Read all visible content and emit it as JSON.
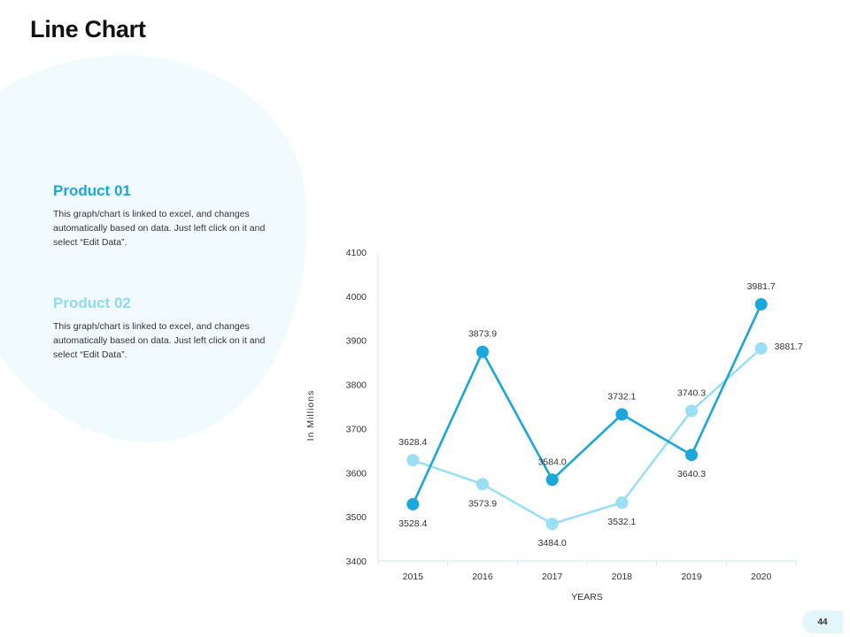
{
  "page_title": "Line Chart",
  "page_number": "44",
  "products": [
    {
      "name": "Product  01",
      "description": "This graph/chart is linked to excel, and changes automatically based on data. Just left click on it and select “Edit Data”."
    },
    {
      "name": "Product  02",
      "description": "This graph/chart is linked to excel, and changes automatically based on data. Just left click on it and select “Edit Data”."
    }
  ],
  "colors": {
    "product_01": "#1aa7dc",
    "product_02": "#9adff5",
    "axis": "#cfeaf4"
  },
  "chart_data": {
    "type": "line",
    "title": "",
    "xlabel": "YEARS",
    "ylabel": "In Millions",
    "categories": [
      "2015",
      "2016",
      "2017",
      "2018",
      "2019",
      "2020"
    ],
    "ylim": [
      3400,
      4100
    ],
    "yticks": [
      3400,
      3500,
      3600,
      3700,
      3800,
      3900,
      4000,
      4100
    ],
    "grid": false,
    "series": [
      {
        "name": "Product 01",
        "values": [
          3528.4,
          3873.9,
          3584.0,
          3732.1,
          3640.3,
          3981.7
        ],
        "labels": [
          "3528.4",
          "3873.9",
          "3584.0",
          "3732.1",
          "3640.3",
          "3981.7"
        ]
      },
      {
        "name": "Product 02",
        "values": [
          3628.4,
          3573.9,
          3484.0,
          3532.1,
          3740.3,
          3881.7
        ],
        "labels": [
          "3628.4",
          "3573.9",
          "3484.0",
          "3532.1",
          "3740.3",
          "3881.7"
        ]
      }
    ]
  }
}
